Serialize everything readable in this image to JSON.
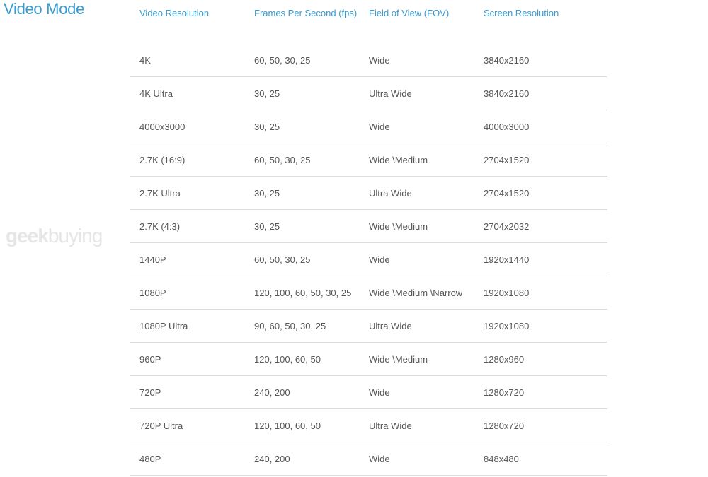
{
  "title": "Video Mode",
  "columns": [
    "Video Resolution",
    "Frames Per Second (fps)",
    "Field of View (FOV)",
    "Screen Resolution"
  ],
  "rows": [
    [
      "4K",
      "60, 50, 30, 25",
      "Wide",
      "3840x2160"
    ],
    [
      "4K Ultra",
      "30, 25",
      "Ultra Wide",
      "3840x2160"
    ],
    [
      "4000x3000",
      "30, 25",
      "Wide",
      "4000x3000"
    ],
    [
      "2.7K (16:9)",
      "60, 50, 30, 25",
      "Wide \\Medium",
      "2704x1520"
    ],
    [
      "2.7K Ultra",
      "30, 25",
      "Ultra Wide",
      "2704x1520"
    ],
    [
      "2.7K (4:3)",
      "30, 25",
      "Wide \\Medium",
      "2704x2032"
    ],
    [
      "1440P",
      "60, 50, 30, 25",
      "Wide",
      "1920x1440"
    ],
    [
      "1080P",
      "120, 100, 60, 50, 30, 25",
      "Wide \\Medium \\Narrow",
      "1920x1080"
    ],
    [
      "1080P Ultra",
      "90, 60, 50, 30, 25",
      "Ultra Wide",
      "1920x1080"
    ],
    [
      "960P",
      "120, 100, 60, 50",
      "Wide \\Medium",
      "1280x960"
    ],
    [
      "720P",
      "240, 200",
      "Wide",
      "1280x720"
    ],
    [
      "720P Ultra",
      "120, 100, 60, 50",
      "Ultra Wide",
      "1280x720"
    ],
    [
      "480P",
      "240, 200",
      "Wide",
      "848x480"
    ]
  ],
  "watermark": "geekbuying",
  "colors": {
    "accent": "#3a9bcf",
    "text": "#555555",
    "divider": "#dcdcdc"
  }
}
